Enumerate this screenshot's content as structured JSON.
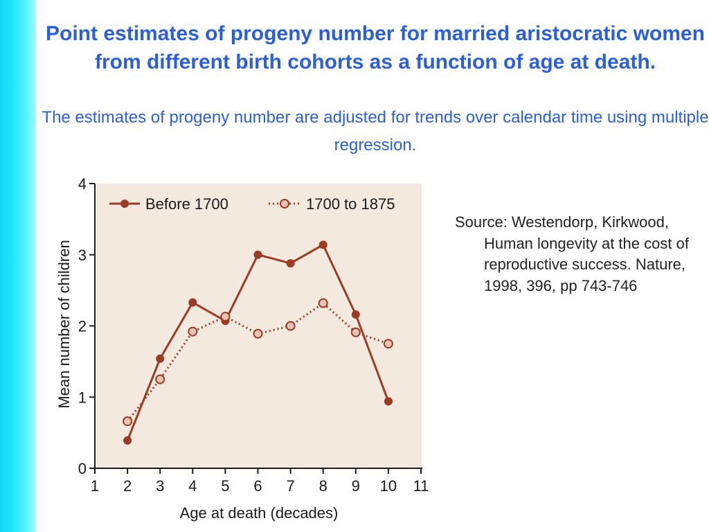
{
  "slide": {
    "title": "Point estimates of progeny number for married aristocratic women from different birth cohorts as a function of age at death.",
    "subtitle": "The estimates of progeny number are adjusted for trends over calendar time using multiple regression.",
    "source": "Source:  Westendorp, Kirkwood, Human longevity at the cost of reproductive success.  Nature, 1998, 396, pp 743-746"
  },
  "colors": {
    "accent": "#2b5fd9",
    "series": "#9b3b24",
    "plot_background": "#f3e9df",
    "side_bar": "#1ee6fb"
  },
  "chart_data": {
    "type": "line",
    "xlabel": "Age at death (decades)",
    "ylabel": "Mean number of children",
    "xlim": [
      1,
      11
    ],
    "ylim": [
      0,
      4
    ],
    "x_ticks": [
      1,
      2,
      3,
      4,
      5,
      6,
      7,
      8,
      9,
      10,
      11
    ],
    "y_ticks": [
      0,
      1,
      2,
      3,
      4
    ],
    "legend_position": "top",
    "series": [
      {
        "name": "Before 1700",
        "style": "solid",
        "x": [
          2,
          3,
          4,
          5,
          6,
          7,
          8,
          9,
          10
        ],
        "y": [
          0.39,
          1.54,
          2.33,
          2.07,
          3.0,
          2.88,
          3.14,
          2.16,
          0.94
        ]
      },
      {
        "name": "1700 to 1875",
        "style": "dotted",
        "x": [
          2,
          3,
          4,
          5,
          6,
          7,
          8,
          9,
          10
        ],
        "y": [
          0.66,
          1.25,
          1.92,
          2.13,
          1.89,
          2.0,
          2.32,
          1.91,
          1.75
        ]
      }
    ]
  }
}
